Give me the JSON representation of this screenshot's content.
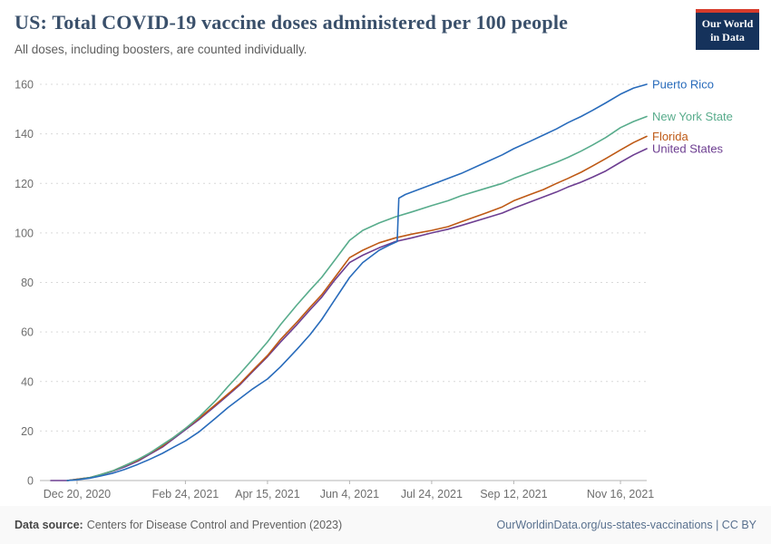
{
  "header": {
    "title": "US: Total COVID-19 vaccine doses administered per 100 people",
    "subtitle": "All doses, including boosters, are counted individually.",
    "logo": {
      "line1": "Our World",
      "line2": "in Data",
      "bg": "#15325b",
      "accent": "#d73c2c"
    }
  },
  "chart_data": {
    "type": "line",
    "title": "US: Total COVID-19 vaccine doses administered per 100 people",
    "xlabel": "",
    "ylabel": "Total COVID-19 vaccine doses administered per 100 people",
    "ylim": [
      0,
      160
    ],
    "yticks": [
      0,
      20,
      40,
      60,
      80,
      100,
      120,
      140,
      160
    ],
    "grid": true,
    "legend_position": "right-end-labels",
    "x_domain_days": [
      -10,
      353
    ],
    "x_epoch": "days since Dec 14, 2020",
    "xticks": [
      {
        "day": 6,
        "label": "Dec 20, 2020"
      },
      {
        "day": 72,
        "label": "Feb 24, 2021"
      },
      {
        "day": 122,
        "label": "Apr 15, 2021"
      },
      {
        "day": 172,
        "label": "Jun 4, 2021"
      },
      {
        "day": 222,
        "label": "Jul 24, 2021"
      },
      {
        "day": 272,
        "label": "Sep 12, 2021"
      },
      {
        "day": 337,
        "label": "Nov 16, 2021"
      }
    ],
    "series": [
      {
        "name": "Puerto Rico",
        "color": "#286bbb",
        "points": [
          [
            0,
            0
          ],
          [
            6,
            0.3
          ],
          [
            14,
            1
          ],
          [
            20,
            1.8
          ],
          [
            28,
            3
          ],
          [
            35,
            4.5
          ],
          [
            43,
            6.5
          ],
          [
            50,
            8.5
          ],
          [
            58,
            11
          ],
          [
            65,
            13.5
          ],
          [
            72,
            16
          ],
          [
            80,
            19.5
          ],
          [
            90,
            25
          ],
          [
            98,
            29.5
          ],
          [
            105,
            33
          ],
          [
            113,
            37
          ],
          [
            122,
            41
          ],
          [
            130,
            46
          ],
          [
            140,
            53
          ],
          [
            148,
            59
          ],
          [
            155,
            65
          ],
          [
            163,
            73
          ],
          [
            172,
            82
          ],
          [
            180,
            88
          ],
          [
            190,
            93
          ],
          [
            196,
            95
          ],
          [
            201,
            96.5
          ],
          [
            202,
            114
          ],
          [
            206,
            115.5
          ],
          [
            210,
            116.5
          ],
          [
            222,
            119.5
          ],
          [
            232,
            122
          ],
          [
            240,
            124
          ],
          [
            255,
            128.5
          ],
          [
            265,
            131.5
          ],
          [
            272,
            134
          ],
          [
            282,
            137
          ],
          [
            290,
            139.5
          ],
          [
            298,
            142
          ],
          [
            305,
            144.5
          ],
          [
            313,
            147
          ],
          [
            320,
            149.5
          ],
          [
            328,
            152.5
          ],
          [
            337,
            156
          ],
          [
            345,
            158.5
          ],
          [
            353,
            160
          ]
        ]
      },
      {
        "name": "New York State",
        "color": "#58ac8c",
        "points": [
          [
            0,
            0
          ],
          [
            6,
            0.4
          ],
          [
            14,
            1.2
          ],
          [
            20,
            2.3
          ],
          [
            28,
            4
          ],
          [
            35,
            6
          ],
          [
            43,
            8.5
          ],
          [
            50,
            11
          ],
          [
            58,
            14.5
          ],
          [
            65,
            17.5
          ],
          [
            72,
            21
          ],
          [
            80,
            25.5
          ],
          [
            90,
            32
          ],
          [
            98,
            38
          ],
          [
            105,
            43
          ],
          [
            113,
            49
          ],
          [
            122,
            56
          ],
          [
            130,
            63
          ],
          [
            140,
            71
          ],
          [
            148,
            77
          ],
          [
            155,
            82
          ],
          [
            163,
            89
          ],
          [
            172,
            97
          ],
          [
            180,
            101
          ],
          [
            190,
            104
          ],
          [
            200,
            106.5
          ],
          [
            210,
            108.5
          ],
          [
            222,
            111
          ],
          [
            232,
            113
          ],
          [
            240,
            115
          ],
          [
            255,
            118
          ],
          [
            265,
            120
          ],
          [
            272,
            122
          ],
          [
            282,
            124.5
          ],
          [
            290,
            126.5
          ],
          [
            298,
            128.5
          ],
          [
            305,
            130.5
          ],
          [
            313,
            133
          ],
          [
            320,
            135.5
          ],
          [
            328,
            138.5
          ],
          [
            337,
            142.5
          ],
          [
            345,
            145
          ],
          [
            353,
            147
          ]
        ]
      },
      {
        "name": "Florida",
        "color": "#be5915",
        "points": [
          [
            0,
            0
          ],
          [
            6,
            0.5
          ],
          [
            14,
            1.2
          ],
          [
            20,
            2.3
          ],
          [
            28,
            4
          ],
          [
            35,
            6
          ],
          [
            43,
            8.2
          ],
          [
            50,
            11
          ],
          [
            58,
            14
          ],
          [
            65,
            17.5
          ],
          [
            72,
            21
          ],
          [
            80,
            25
          ],
          [
            90,
            30.5
          ],
          [
            98,
            35
          ],
          [
            105,
            39
          ],
          [
            113,
            44.5
          ],
          [
            122,
            50.5
          ],
          [
            130,
            57
          ],
          [
            140,
            64
          ],
          [
            148,
            70
          ],
          [
            155,
            75
          ],
          [
            163,
            82
          ],
          [
            172,
            90
          ],
          [
            180,
            93
          ],
          [
            190,
            96
          ],
          [
            200,
            98
          ],
          [
            210,
            99.5
          ],
          [
            222,
            101
          ],
          [
            232,
            102.5
          ],
          [
            240,
            104.5
          ],
          [
            255,
            108
          ],
          [
            265,
            110.5
          ],
          [
            272,
            113
          ],
          [
            282,
            115.5
          ],
          [
            290,
            117.5
          ],
          [
            298,
            120
          ],
          [
            305,
            122
          ],
          [
            313,
            124.5
          ],
          [
            320,
            127
          ],
          [
            328,
            130
          ],
          [
            337,
            133.5
          ],
          [
            345,
            136.5
          ],
          [
            353,
            139
          ]
        ]
      },
      {
        "name": "United States",
        "color": "#6d3e91",
        "points": [
          [
            -10,
            0
          ],
          [
            0,
            0
          ],
          [
            6,
            0.5
          ],
          [
            14,
            1.2
          ],
          [
            20,
            2.2
          ],
          [
            28,
            3.8
          ],
          [
            35,
            5.5
          ],
          [
            43,
            7.8
          ],
          [
            50,
            10.5
          ],
          [
            58,
            13.5
          ],
          [
            65,
            17
          ],
          [
            72,
            20.5
          ],
          [
            80,
            24.5
          ],
          [
            90,
            30
          ],
          [
            98,
            34.5
          ],
          [
            105,
            38.5
          ],
          [
            113,
            44
          ],
          [
            122,
            50
          ],
          [
            130,
            56
          ],
          [
            140,
            63
          ],
          [
            148,
            69
          ],
          [
            155,
            74
          ],
          [
            163,
            81
          ],
          [
            172,
            88
          ],
          [
            180,
            91
          ],
          [
            190,
            94
          ],
          [
            200,
            96.5
          ],
          [
            210,
            98
          ],
          [
            222,
            100
          ],
          [
            232,
            101.5
          ],
          [
            240,
            103
          ],
          [
            255,
            106
          ],
          [
            265,
            108
          ],
          [
            272,
            110
          ],
          [
            282,
            112.5
          ],
          [
            290,
            114.5
          ],
          [
            298,
            116.5
          ],
          [
            305,
            118.5
          ],
          [
            313,
            120.5
          ],
          [
            320,
            122.5
          ],
          [
            328,
            125
          ],
          [
            337,
            128.5
          ],
          [
            345,
            131.5
          ],
          [
            353,
            134
          ]
        ]
      }
    ]
  },
  "footer": {
    "source_label": "Data source:",
    "source_text": "Centers for Disease Control and Prevention (2023)",
    "right_text": "OurWorldinData.org/us-states-vaccinations | CC BY"
  }
}
